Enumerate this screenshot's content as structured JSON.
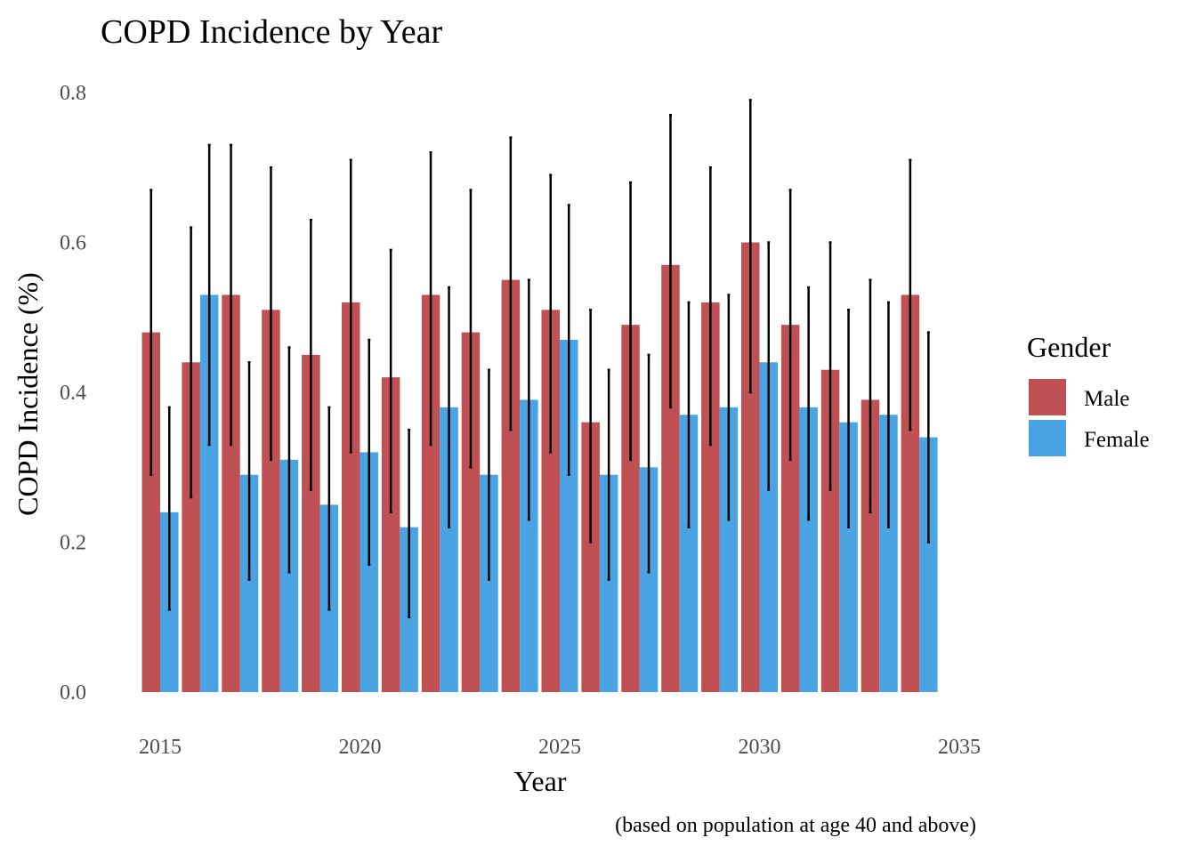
{
  "chart_data": {
    "type": "bar",
    "title": "COPD Incidence by Year",
    "xlabel": "Year",
    "ylabel": "COPD Incidence (%)",
    "caption": "(based on population at age 40 and above)",
    "xlim": [
      2015,
      2035
    ],
    "ylim": [
      0,
      0.8
    ],
    "x_ticks": [
      "2015",
      "2020",
      "2025",
      "2030",
      "2035"
    ],
    "y_ticks": [
      "0.0",
      "0.2",
      "0.4",
      "0.6",
      "0.8"
    ],
    "grid": false,
    "legend": {
      "title": "Gender",
      "position": "right"
    },
    "x": [
      2015,
      2016,
      2017,
      2018,
      2019,
      2020,
      2021,
      2022,
      2023,
      2024,
      2025,
      2026,
      2027,
      2028,
      2029,
      2030,
      2031,
      2032,
      2033,
      2034
    ],
    "series": [
      {
        "name": "Male",
        "color": "#BF5155",
        "values": [
          0.48,
          0.44,
          0.53,
          0.51,
          0.45,
          0.52,
          0.42,
          0.53,
          0.48,
          0.55,
          0.51,
          0.36,
          0.49,
          0.57,
          0.52,
          0.6,
          0.49,
          0.43,
          0.39,
          0.53
        ],
        "error_low": [
          0.29,
          0.26,
          0.33,
          0.31,
          0.27,
          0.32,
          0.24,
          0.33,
          0.3,
          0.35,
          0.32,
          0.2,
          0.31,
          0.38,
          0.33,
          0.4,
          0.31,
          0.27,
          0.24,
          0.35
        ],
        "error_high": [
          0.67,
          0.62,
          0.73,
          0.7,
          0.63,
          0.71,
          0.59,
          0.72,
          0.67,
          0.74,
          0.69,
          0.51,
          0.68,
          0.77,
          0.7,
          0.79,
          0.67,
          0.6,
          0.55,
          0.71
        ]
      },
      {
        "name": "Female",
        "color": "#4AA4E3",
        "values": [
          0.24,
          0.53,
          0.29,
          0.31,
          0.25,
          0.32,
          0.22,
          0.38,
          0.29,
          0.39,
          0.47,
          0.29,
          0.3,
          0.37,
          0.38,
          0.44,
          0.38,
          0.36,
          0.37,
          0.34
        ],
        "error_low": [
          0.11,
          0.33,
          0.15,
          0.16,
          0.11,
          0.17,
          0.1,
          0.22,
          0.15,
          0.23,
          0.29,
          0.15,
          0.16,
          0.22,
          0.23,
          0.27,
          0.23,
          0.22,
          0.22,
          0.2
        ],
        "error_high": [
          0.38,
          0.73,
          0.44,
          0.46,
          0.38,
          0.47,
          0.35,
          0.54,
          0.43,
          0.55,
          0.65,
          0.43,
          0.45,
          0.52,
          0.53,
          0.6,
          0.54,
          0.51,
          0.52,
          0.48
        ]
      }
    ]
  }
}
